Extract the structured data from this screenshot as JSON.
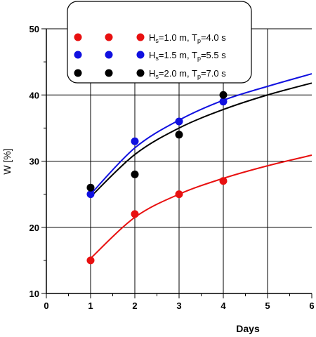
{
  "chart_data": {
    "type": "scatter",
    "xlabel": "Days",
    "ylabel": "W [%]",
    "xlim": [
      0,
      6
    ],
    "ylim": [
      10,
      50
    ],
    "xticks": [
      0,
      1,
      2,
      3,
      4,
      5,
      6
    ],
    "yticks": [
      10,
      20,
      30,
      40,
      50
    ],
    "grid": true,
    "legend_position": "top-center",
    "series": [
      {
        "name": "Hs=1.0 m, Tp=4.0 s",
        "legend": {
          "h_main": "H",
          "h_sub": "s",
          "h_rest": "=1.0 m, T",
          "t_sub": "p",
          "t_rest": "=4.0 s"
        },
        "color": "#e81010",
        "points": [
          {
            "x": 1,
            "y": 15
          },
          {
            "x": 2,
            "y": 22
          },
          {
            "x": 3,
            "y": 25
          },
          {
            "x": 4,
            "y": 27
          }
        ],
        "fit_curve": [
          {
            "x": 1,
            "y": 15.3
          },
          {
            "x": 2,
            "y": 21.5
          },
          {
            "x": 3,
            "y": 25.0
          },
          {
            "x": 4,
            "y": 27.4
          },
          {
            "x": 5,
            "y": 29.3
          },
          {
            "x": 6,
            "y": 30.9
          }
        ]
      },
      {
        "name": "Hs=1.5 m, Tp=5.5 s",
        "legend": {
          "h_main": "H",
          "h_sub": "s",
          "h_rest": "=1.5 m, T",
          "t_sub": "p",
          "t_rest": "=5.5 s"
        },
        "color": "#1010e0",
        "points": [
          {
            "x": 1,
            "y": 25
          },
          {
            "x": 2,
            "y": 33
          },
          {
            "x": 3,
            "y": 36
          },
          {
            "x": 4,
            "y": 39
          }
        ],
        "fit_curve": [
          {
            "x": 1,
            "y": 25.0
          },
          {
            "x": 2,
            "y": 32.0
          },
          {
            "x": 3,
            "y": 36.2
          },
          {
            "x": 4,
            "y": 39.2
          },
          {
            "x": 5,
            "y": 41.3
          },
          {
            "x": 6,
            "y": 43.2
          }
        ]
      },
      {
        "name": "Hs=2.0 m, Tp=7.0 s",
        "legend": {
          "h_main": "H",
          "h_sub": "s",
          "h_rest": "=2.0 m, T",
          "t_sub": "p",
          "t_rest": "=7.0 s"
        },
        "color": "#000000",
        "points": [
          {
            "x": 1,
            "y": 26
          },
          {
            "x": 2,
            "y": 28
          },
          {
            "x": 3,
            "y": 34
          },
          {
            "x": 4,
            "y": 40
          }
        ],
        "fit_curve": [
          {
            "x": 1,
            "y": 24.6
          },
          {
            "x": 2,
            "y": 31.0
          },
          {
            "x": 3,
            "y": 35.0
          },
          {
            "x": 4,
            "y": 37.8
          },
          {
            "x": 5,
            "y": 40.0
          },
          {
            "x": 6,
            "y": 41.8
          }
        ]
      }
    ]
  }
}
